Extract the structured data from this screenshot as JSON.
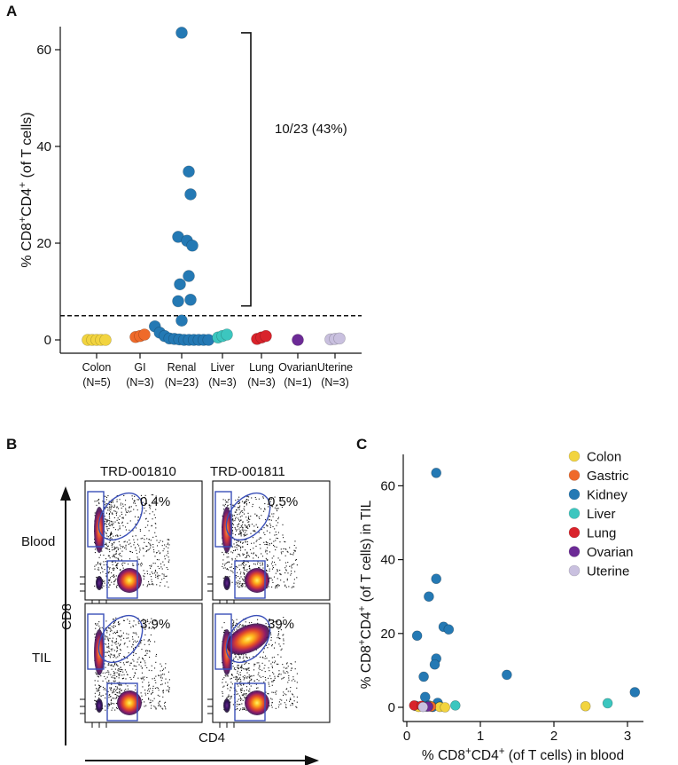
{
  "panels": {
    "a": "A",
    "b": "B",
    "c": "C"
  },
  "colors": {
    "Colon": "#f2d43f",
    "Gastric": "#ef6a2a",
    "Kidney": "#2479b4",
    "Liver": "#3cc6bf",
    "Lung": "#d9232b",
    "Ovarian": "#6c2a96",
    "Uterine": "#c9c0df"
  },
  "chart_data": [
    {
      "type": "scatter",
      "panel": "A",
      "ylabel_main": "% CD8",
      "ylabel_sup1": "+",
      "ylabel_mid": "CD4",
      "ylabel_sup2": "+",
      "ylabel_tail": " (of T cells)",
      "ylim": [
        -3,
        64
      ],
      "yticks": [
        0,
        20,
        40,
        60
      ],
      "threshold": 5,
      "bracket_range": [
        5,
        63.5
      ],
      "bracket_label": "10/23 (43%)",
      "categories": [
        {
          "name": "Colon",
          "n": "(N=5)",
          "color_key": "Colon",
          "values": [
            0,
            0,
            0,
            0,
            0
          ]
        },
        {
          "name": "GI",
          "n": "(N=3)",
          "color_key": "Gastric",
          "values": [
            0.6,
            0.8,
            1.1
          ]
        },
        {
          "name": "Renal",
          "n": "(N=23)",
          "color_key": "Kidney",
          "values": [
            63.5,
            34.8,
            30.1,
            21.3,
            20.5,
            19.5,
            13.2,
            11.5,
            8.3,
            8.0,
            4.0,
            2.8,
            1.5,
            0.8,
            0.3,
            0.2,
            0.1,
            0,
            0,
            0,
            0,
            0,
            0
          ]
        },
        {
          "name": "Liver",
          "n": "(N=3)",
          "color_key": "Liver",
          "values": [
            0.5,
            0.8,
            1.1
          ]
        },
        {
          "name": "Lung",
          "n": "(N=3)",
          "color_key": "Lung",
          "values": [
            0.2,
            0.5,
            0.8
          ]
        },
        {
          "name": "Ovarian",
          "n": "(N=1)",
          "color_key": "Ovarian",
          "values": [
            0
          ]
        },
        {
          "name": "Uterine",
          "n": "(N=3)",
          "color_key": "Uterine",
          "values": [
            0.1,
            0.2,
            0.3
          ]
        }
      ]
    },
    {
      "type": "flow_cytometry",
      "panel": "B",
      "columns": [
        "TRD-001810",
        "TRD-001811"
      ],
      "rows": [
        "Blood",
        "TIL"
      ],
      "xlabel": "CD4",
      "ylabel": "CD8",
      "gate_percentages": [
        [
          "0.4%",
          "0.5%"
        ],
        [
          "3.9%",
          "39%"
        ]
      ]
    },
    {
      "type": "scatter",
      "panel": "C",
      "xlabel_main": "% CD8",
      "xlabel_sup1": "+",
      "xlabel_mid": "CD4",
      "xlabel_sup2": "+",
      "xlabel_tail": " (of T cells) in blood",
      "ylabel_main": "% CD8",
      "ylabel_sup1": "+",
      "ylabel_mid": "CD4",
      "ylabel_sup2": "+",
      "ylabel_tail": " (of T cells) in TIL",
      "xlim": [
        -0.05,
        3.2
      ],
      "ylim": [
        -3,
        66
      ],
      "xticks": [
        0,
        1,
        2,
        3
      ],
      "yticks": [
        0,
        20,
        40,
        60
      ],
      "legend": [
        "Colon",
        "Gastric",
        "Kidney",
        "Liver",
        "Lung",
        "Ovarian",
        "Uterine"
      ],
      "points": [
        {
          "x": 0.4,
          "y": 63.5,
          "g": "Kidney"
        },
        {
          "x": 0.4,
          "y": 34.8,
          "g": "Kidney"
        },
        {
          "x": 0.3,
          "y": 30.0,
          "g": "Kidney"
        },
        {
          "x": 0.5,
          "y": 21.8,
          "g": "Kidney"
        },
        {
          "x": 0.57,
          "y": 21.1,
          "g": "Kidney"
        },
        {
          "x": 0.14,
          "y": 19.4,
          "g": "Kidney"
        },
        {
          "x": 0.4,
          "y": 13.2,
          "g": "Kidney"
        },
        {
          "x": 0.38,
          "y": 11.6,
          "g": "Kidney"
        },
        {
          "x": 1.36,
          "y": 8.8,
          "g": "Kidney"
        },
        {
          "x": 0.23,
          "y": 8.3,
          "g": "Kidney"
        },
        {
          "x": 3.1,
          "y": 4.1,
          "g": "Kidney"
        },
        {
          "x": 0.25,
          "y": 2.8,
          "g": "Kidney"
        },
        {
          "x": 0.42,
          "y": 1.2,
          "g": "Kidney"
        },
        {
          "x": 0.3,
          "y": 0.5,
          "g": "Kidney"
        },
        {
          "x": 0.2,
          "y": 0.3,
          "g": "Kidney"
        },
        {
          "x": 0.45,
          "y": 0.2,
          "g": "Kidney"
        },
        {
          "x": 0.35,
          "y": 0.1,
          "g": "Kidney"
        },
        {
          "x": 0.12,
          "y": 0.4,
          "g": "Kidney"
        },
        {
          "x": 0.27,
          "y": 0.2,
          "g": "Kidney"
        },
        {
          "x": 0.16,
          "y": 0.1,
          "g": "Colon"
        },
        {
          "x": 0.33,
          "y": 0.3,
          "g": "Colon"
        },
        {
          "x": 0.45,
          "y": 0.1,
          "g": "Colon"
        },
        {
          "x": 0.52,
          "y": 0.0,
          "g": "Colon"
        },
        {
          "x": 2.43,
          "y": 0.3,
          "g": "Colon"
        },
        {
          "x": 0.33,
          "y": 0.2,
          "g": "Gastric"
        },
        {
          "x": 0.66,
          "y": 0.5,
          "g": "Liver"
        },
        {
          "x": 2.73,
          "y": 1.1,
          "g": "Liver"
        },
        {
          "x": 0.1,
          "y": 0.5,
          "g": "Lung"
        },
        {
          "x": 0.2,
          "y": 0.4,
          "g": "Lung"
        },
        {
          "x": 0.29,
          "y": 0.2,
          "g": "Ovarian"
        },
        {
          "x": 0.22,
          "y": 0.1,
          "g": "Uterine"
        }
      ]
    }
  ]
}
